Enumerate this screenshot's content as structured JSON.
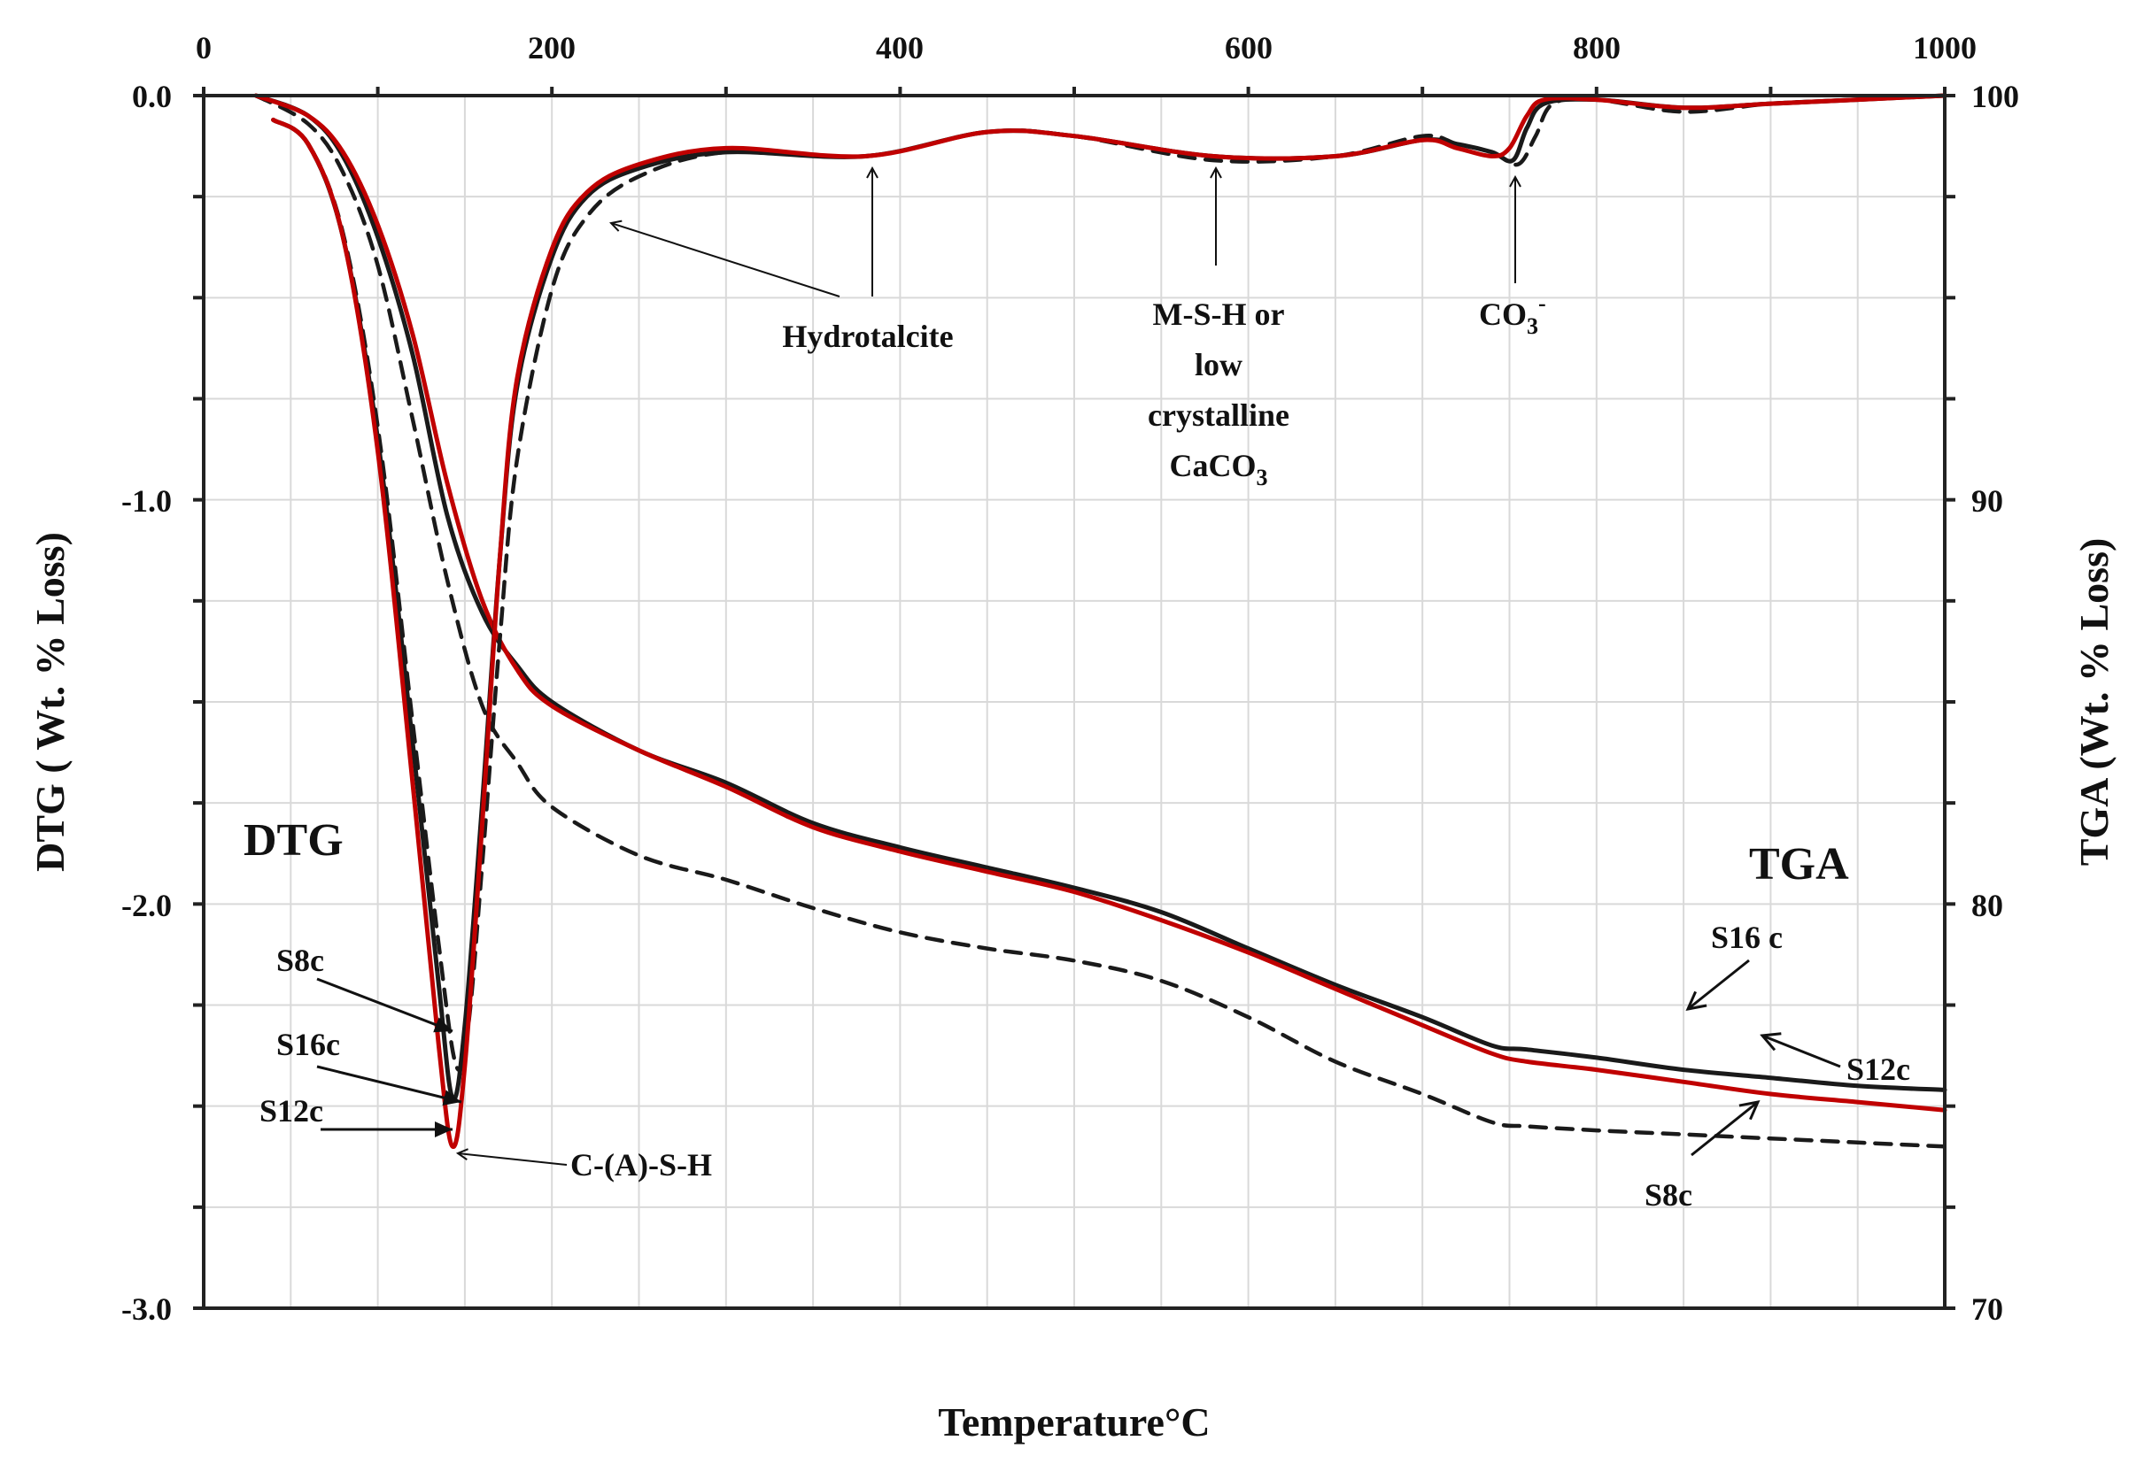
{
  "chart_data": {
    "type": "line",
    "x_axis": {
      "label": "Temperature°C",
      "range": [
        0,
        1000
      ],
      "ticks": [
        "0",
        "200",
        "400",
        "600",
        "800",
        "1000"
      ]
    },
    "y_left": {
      "label": "DTG ( Wt. % Loss)",
      "range": [
        -3.0,
        0.0
      ],
      "ticks": [
        "0.0",
        "-1.0",
        "-2.0",
        "-3.0"
      ]
    },
    "y_right": {
      "label": "TGA (Wt. % Loss)",
      "range": [
        70,
        100
      ],
      "ticks": [
        "100",
        "90",
        "80",
        "70"
      ]
    },
    "grid": true,
    "panel_labels": {
      "dtg": "DTG",
      "tga": "TGA"
    },
    "colors": {
      "S16c": "#1a1a1a",
      "S12c": "#c00000",
      "S8c": "#1a1a1a"
    },
    "dtg_series": [
      {
        "name": "S16c",
        "style": "solid",
        "x": [
          40,
          60,
          80,
          100,
          120,
          135,
          143,
          150,
          160,
          170,
          180,
          200,
          220,
          250,
          300,
          380,
          450,
          500,
          580,
          650,
          700,
          720,
          740,
          752,
          760,
          770,
          800,
          850,
          900,
          950,
          1000
        ],
        "y": [
          -0.06,
          -0.12,
          -0.35,
          -0.85,
          -1.6,
          -2.2,
          -2.48,
          -2.3,
          -1.75,
          -1.15,
          -0.72,
          -0.4,
          -0.25,
          -0.18,
          -0.14,
          -0.15,
          -0.09,
          -0.1,
          -0.15,
          -0.15,
          -0.11,
          -0.12,
          -0.14,
          -0.16,
          -0.08,
          -0.02,
          -0.01,
          -0.03,
          -0.02,
          -0.01,
          0.0
        ]
      },
      {
        "name": "S12c",
        "style": "solid",
        "x": [
          40,
          60,
          80,
          100,
          120,
          135,
          143,
          150,
          160,
          170,
          180,
          200,
          220,
          250,
          300,
          380,
          450,
          500,
          580,
          650,
          700,
          720,
          740,
          750,
          760,
          770,
          800,
          850,
          900,
          950,
          1000
        ],
        "y": [
          -0.06,
          -0.12,
          -0.35,
          -0.88,
          -1.7,
          -2.35,
          -2.6,
          -2.4,
          -1.8,
          -1.15,
          -0.7,
          -0.38,
          -0.24,
          -0.17,
          -0.13,
          -0.15,
          -0.09,
          -0.1,
          -0.15,
          -0.15,
          -0.11,
          -0.13,
          -0.15,
          -0.13,
          -0.05,
          -0.01,
          -0.01,
          -0.03,
          -0.02,
          -0.01,
          0.0
        ]
      },
      {
        "name": "S8c",
        "style": "dashed",
        "x": [
          40,
          60,
          80,
          100,
          120,
          135,
          145,
          152,
          160,
          170,
          180,
          200,
          220,
          250,
          300,
          380,
          450,
          500,
          580,
          650,
          700,
          720,
          740,
          755,
          765,
          775,
          800,
          850,
          900,
          950,
          1000
        ],
        "y": [
          -0.06,
          -0.12,
          -0.34,
          -0.82,
          -1.55,
          -2.1,
          -2.4,
          -2.3,
          -1.9,
          -1.35,
          -0.9,
          -0.48,
          -0.3,
          -0.2,
          -0.14,
          -0.15,
          -0.09,
          -0.1,
          -0.16,
          -0.15,
          -0.1,
          -0.12,
          -0.14,
          -0.17,
          -0.1,
          -0.02,
          -0.01,
          -0.04,
          -0.02,
          -0.01,
          0.0
        ]
      }
    ],
    "tga_series": [
      {
        "name": "S16c",
        "style": "solid",
        "x": [
          30,
          60,
          80,
          100,
          120,
          140,
          160,
          180,
          200,
          250,
          300,
          350,
          400,
          450,
          500,
          550,
          600,
          650,
          700,
          740,
          760,
          800,
          850,
          900,
          950,
          1000
        ],
        "y": [
          100,
          99.5,
          98.5,
          96.5,
          93.6,
          89.6,
          87.2,
          85.9,
          85.0,
          83.8,
          83.0,
          82.0,
          81.4,
          80.9,
          80.4,
          79.8,
          78.9,
          78.0,
          77.2,
          76.5,
          76.4,
          76.2,
          75.9,
          75.7,
          75.5,
          75.4
        ]
      },
      {
        "name": "S12c",
        "style": "solid",
        "x": [
          30,
          60,
          80,
          100,
          120,
          140,
          160,
          180,
          200,
          250,
          300,
          350,
          400,
          450,
          500,
          550,
          600,
          650,
          700,
          740,
          760,
          800,
          850,
          900,
          950,
          1000
        ],
        "y": [
          100,
          99.5,
          98.6,
          96.8,
          94.1,
          90.4,
          87.5,
          85.8,
          84.9,
          83.8,
          82.9,
          81.9,
          81.3,
          80.8,
          80.3,
          79.6,
          78.8,
          77.9,
          77.0,
          76.3,
          76.1,
          75.9,
          75.6,
          75.3,
          75.1,
          74.9
        ]
      },
      {
        "name": "S8c",
        "style": "dashed",
        "x": [
          30,
          60,
          80,
          100,
          120,
          140,
          160,
          180,
          200,
          250,
          300,
          350,
          400,
          450,
          500,
          550,
          600,
          650,
          700,
          740,
          760,
          800,
          850,
          900,
          950,
          1000
        ],
        "y": [
          100,
          99.3,
          98.1,
          95.8,
          92.0,
          88.0,
          84.9,
          83.5,
          82.4,
          81.2,
          80.6,
          79.9,
          79.3,
          78.9,
          78.6,
          78.1,
          77.2,
          76.1,
          75.3,
          74.6,
          74.5,
          74.4,
          74.3,
          74.2,
          74.1,
          74.0
        ]
      }
    ],
    "annotations": {
      "hydrotalcite": "Hydrotalcite",
      "msh": [
        "M-S-H or",
        "low",
        "crystalline",
        "CaCO"
      ],
      "msh_sub": "3",
      "co3": "CO",
      "co3_sub": "3",
      "co3_sup": "-",
      "cash": "C-(A)-S-H",
      "dtg_s8c": "S8c",
      "dtg_s16c": "S16c",
      "dtg_s12c": "S12c",
      "tga_s16c": "S16 c",
      "tga_s12c": "S12c",
      "tga_s8c": "S8c"
    }
  }
}
